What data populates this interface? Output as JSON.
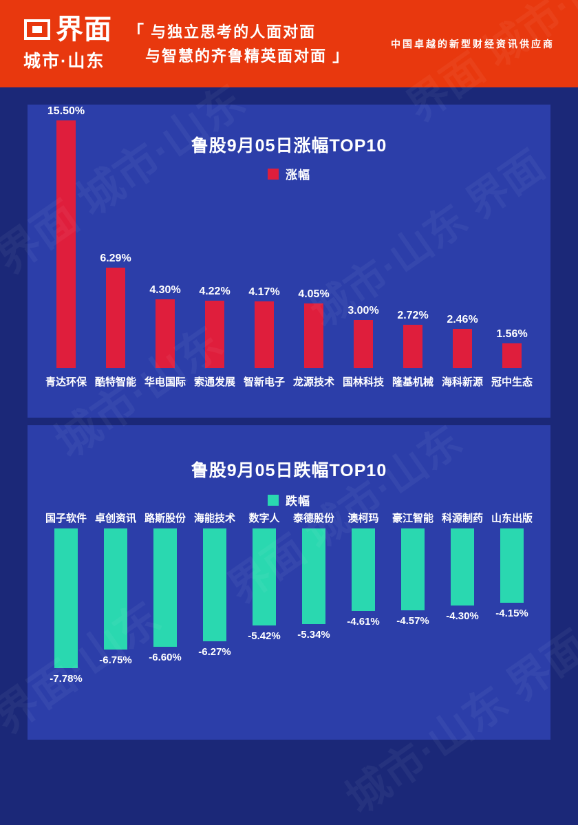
{
  "header": {
    "logo_text": "界面",
    "logo_sub": "城市·山东",
    "bracket_open": "「",
    "bracket_close": "」",
    "tagline_line1": "与独立思考的人面对面",
    "tagline_line2": "与智慧的齐鲁精英面对面",
    "slogan": "中国卓越的新型财经资讯供应商"
  },
  "colors": {
    "header_red": "#e8380e",
    "background_navy": "#1b2878",
    "panel_blue": "#2c3ea9",
    "gain_red": "#df1e3c",
    "loss_teal": "#2ad8b0"
  },
  "watermark_text": "城市·山东 界面",
  "chart_data": [
    {
      "type": "bar",
      "title": "鲁股9月05日涨幅TOP10",
      "legend": "涨幅",
      "direction": "up",
      "bar_color": "#df1e3c",
      "categories": [
        "青达环保",
        "酷特智能",
        "华电国际",
        "索通发展",
        "智新电子",
        "龙源技术",
        "国林科技",
        "隆基机械",
        "海科新源",
        "冠中生态"
      ],
      "values": [
        15.5,
        6.29,
        4.3,
        4.22,
        4.17,
        4.05,
        3.0,
        2.72,
        2.46,
        1.56
      ],
      "value_labels": [
        "15.50%",
        "6.29%",
        "4.30%",
        "4.22%",
        "4.17%",
        "4.05%",
        "3.00%",
        "2.72%",
        "2.46%",
        "1.56%"
      ],
      "ylim": [
        0,
        16
      ],
      "grid": false,
      "legend_position": "top-center"
    },
    {
      "type": "bar",
      "title": "鲁股9月05日跌幅TOP10",
      "legend": "跌幅",
      "direction": "down",
      "bar_color": "#2ad8b0",
      "categories": [
        "国子软件",
        "卓创资讯",
        "路斯股份",
        "海能技术",
        "数字人",
        "泰德股份",
        "澳柯玛",
        "豪江智能",
        "科源制药",
        "山东出版"
      ],
      "values": [
        -7.78,
        -6.75,
        -6.6,
        -6.27,
        -5.42,
        -5.34,
        -4.61,
        -4.57,
        -4.3,
        -4.15
      ],
      "value_labels": [
        "-7.78%",
        "-6.75%",
        "-6.60%",
        "-6.27%",
        "-5.42%",
        "-5.34%",
        "-4.61%",
        "-4.57%",
        "-4.30%",
        "-4.15%"
      ],
      "ylim": [
        -8,
        0
      ],
      "grid": false,
      "legend_position": "top-center"
    }
  ]
}
